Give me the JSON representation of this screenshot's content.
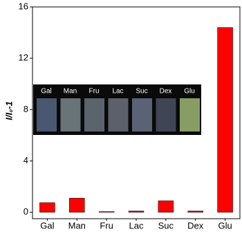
{
  "chart_data": {
    "type": "bar",
    "y_label": "I/I₀-1",
    "categories": [
      "Gal",
      "Man",
      "Fru",
      "Lac",
      "Suc",
      "Dex",
      "Glu"
    ],
    "values": [
      0.75,
      1.1,
      0.05,
      0.1,
      0.9,
      0.1,
      14.4
    ],
    "color": "#ff0000",
    "ylim": [
      -0.5,
      16
    ],
    "yticks": [
      0,
      4,
      8,
      12,
      16
    ],
    "inset_labels": [
      "Gal",
      "Man",
      "Fru",
      "Lac",
      "Suc",
      "Dex",
      "Glu"
    ]
  }
}
